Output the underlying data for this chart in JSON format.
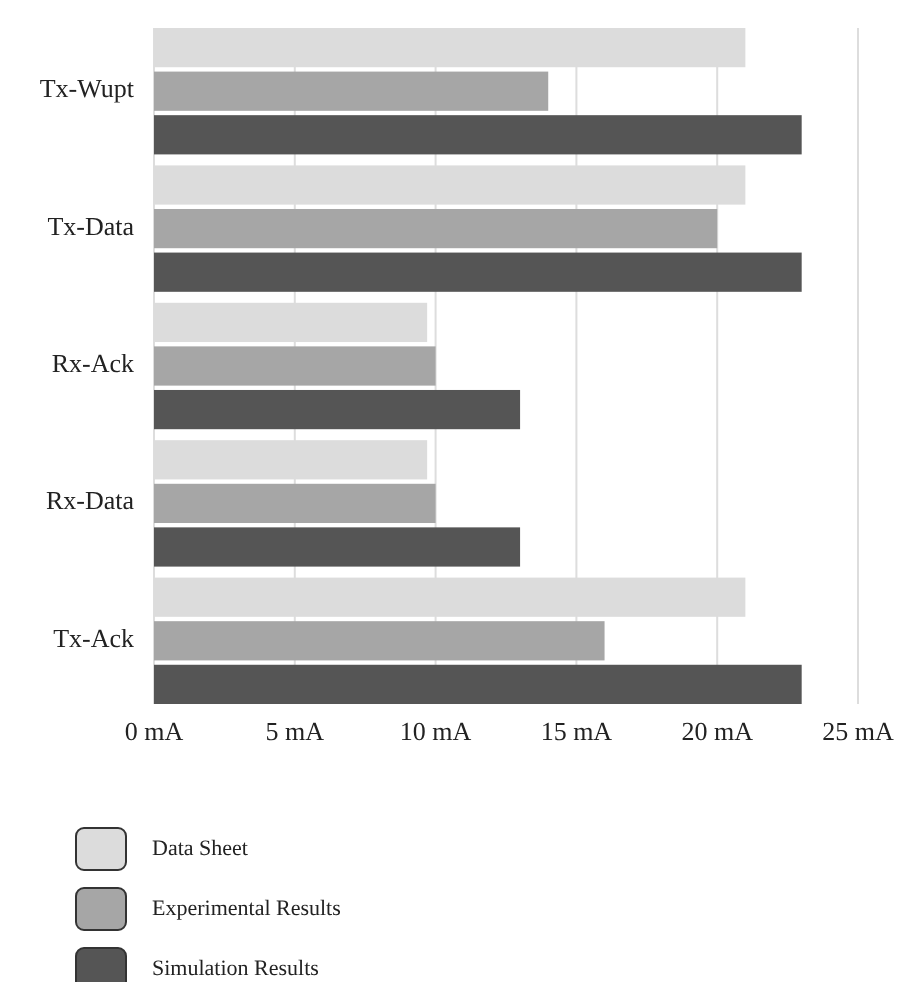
{
  "chart_data": {
    "type": "bar",
    "orientation": "horizontal",
    "categories": [
      "Tx-Wupt",
      "Tx-Data",
      "Rx-Ack",
      "Rx-Data",
      "Tx-Ack"
    ],
    "series": [
      {
        "name": "Data Sheet",
        "color": "#dcdcdc",
        "values": [
          21,
          21,
          9.7,
          9.7,
          21
        ]
      },
      {
        "name": "Experimental Results",
        "color": "#a6a6a6",
        "values": [
          14,
          20,
          10,
          10,
          16
        ]
      },
      {
        "name": "Simulation Results",
        "color": "#555555",
        "values": [
          23,
          23,
          13,
          13,
          23
        ]
      }
    ],
    "xlim": [
      0,
      25
    ],
    "xticks": [
      {
        "value": 0,
        "label": "0 mA"
      },
      {
        "value": 5,
        "label": "5 mA"
      },
      {
        "value": 10,
        "label": "10 mA"
      },
      {
        "value": 15,
        "label": "15 mA"
      },
      {
        "value": 20,
        "label": "20 mA"
      },
      {
        "value": 25,
        "label": "25 mA"
      }
    ],
    "grid": "x",
    "legend": "bottom"
  }
}
